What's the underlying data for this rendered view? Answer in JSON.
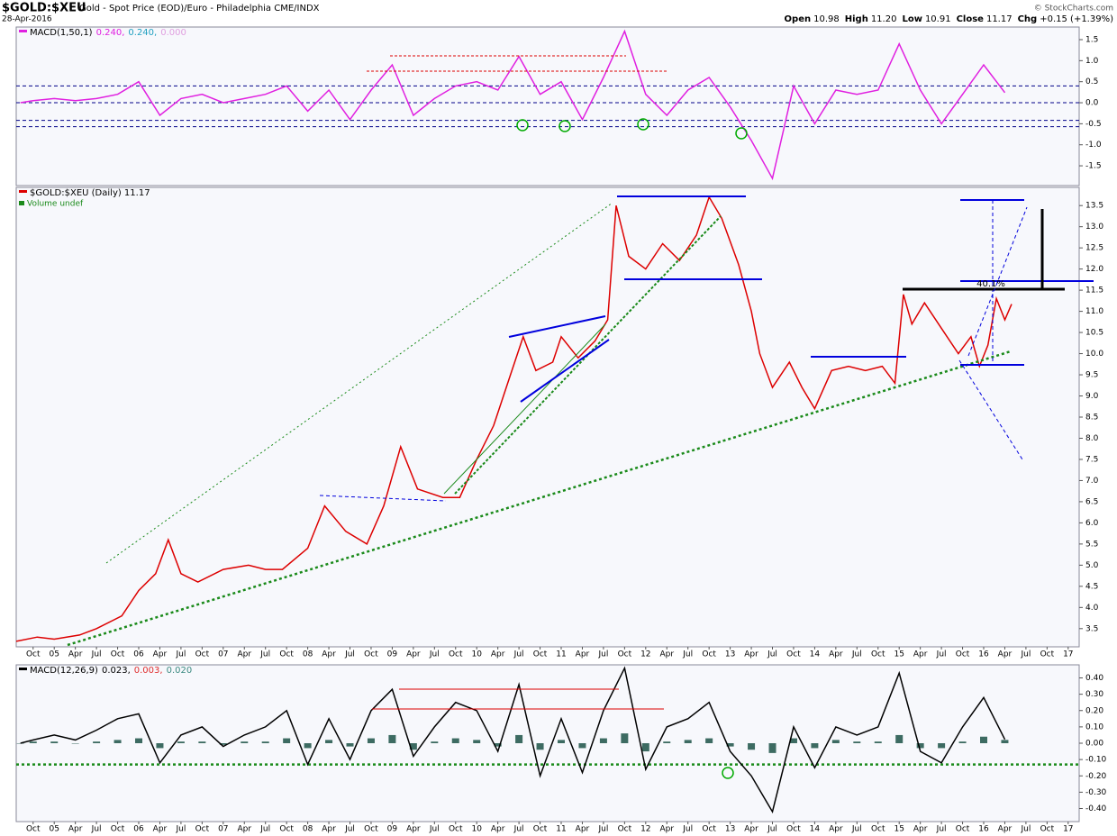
{
  "header": {
    "symbol": "$GOLD:$XEU",
    "description": "Gold - Spot Price (EOD)/Euro - Philadelphia  CME/INDX",
    "date": "28-Apr-2016",
    "copyright": "© StockCharts.com",
    "quote": [
      {
        "label": "Open",
        "value": "10.98"
      },
      {
        "label": "High",
        "value": "11.20"
      },
      {
        "label": "Low",
        "value": "10.91"
      },
      {
        "label": "Close",
        "value": "11.17"
      },
      {
        "label": "Chg",
        "value": "+0.15 (+1.39%)"
      }
    ]
  },
  "chart_data": [
    {
      "type": "line",
      "xlim": [
        2004.55,
        2017.13
      ],
      "ylim": [
        -1.97,
        1.8
      ],
      "yticks": [
        1.5,
        {
          "value": 1,
          "label": "1.0"
        },
        0.5,
        {
          "value": 0,
          "label": "0.0"
        },
        -0.5,
        {
          "value": -1,
          "label": "-1.0"
        },
        -1.5
      ],
      "reference_lines": [
        0.4,
        0,
        -0.42,
        -0.57
      ],
      "x": [
        2004.6,
        2004.75,
        2005,
        2005.25,
        2005.5,
        2005.75,
        2006,
        2006.25,
        2006.5,
        2006.75,
        2007,
        2007.25,
        2007.5,
        2007.75,
        2008,
        2008.25,
        2008.5,
        2008.75,
        2009,
        2009.25,
        2009.5,
        2009.75,
        2010,
        2010.25,
        2010.5,
        2010.75,
        2011,
        2011.25,
        2011.5,
        2011.75,
        2012,
        2012.25,
        2012.5,
        2012.75,
        2013,
        2013.25,
        2013.5,
        2013.75,
        2014,
        2014.25,
        2014.5,
        2014.75,
        2015,
        2015.25,
        2015.5,
        2015.75,
        2016,
        2016.25
      ],
      "series": [
        {
          "name": "MACD(1,50,1)",
          "type": "line",
          "color": "#e020e0",
          "values": [
            0,
            0.05,
            0.1,
            0.05,
            0.1,
            0.2,
            0.5,
            -0.3,
            0.1,
            0.2,
            0,
            0.1,
            0.2,
            0.4,
            -0.2,
            0.3,
            -0.4,
            0.3,
            0.9,
            -0.3,
            0.1,
            0.4,
            0.5,
            0.3,
            1.1,
            0.2,
            0.5,
            -0.4,
            0.6,
            1.7,
            0.2,
            -0.3,
            0.3,
            0.6,
            -0.1,
            -0.9,
            -1.8,
            0.4,
            -0.5,
            0.3,
            0.2,
            0.3,
            1.4,
            0.3,
            -0.5,
            0.2,
            0.9,
            0.24
          ]
        }
      ],
      "legend_values": [
        {
          "text": "0.240,",
          "color": "#e020e0"
        },
        {
          "text": "0.240,",
          "color": "#20a0c0"
        },
        {
          "text": "0.000",
          "color": "#e0a0e0"
        }
      ]
    },
    {
      "type": "line",
      "xlim": [
        2004.55,
        2017.13
      ],
      "ylim": [
        3.07,
        13.93
      ],
      "yticks": [
        3.5,
        {
          "value": 4,
          "label": "4.0"
        },
        4.5,
        {
          "value": 5,
          "label": "5.0"
        },
        5.5,
        {
          "value": 6,
          "label": "6.0"
        },
        6.5,
        {
          "value": 7,
          "label": "7.0"
        },
        7.5,
        {
          "value": 8,
          "label": "8.0"
        },
        8.5,
        {
          "value": 9,
          "label": "9.0"
        },
        9.5,
        {
          "value": 10,
          "label": "10.0"
        },
        10.5,
        {
          "value": 11,
          "label": "11.0"
        },
        11.5,
        {
          "value": 12,
          "label": "12.0"
        },
        12.5,
        {
          "value": 13,
          "label": "13.0"
        },
        13.5
      ],
      "xticks": [
        {
          "value": 2004.75,
          "label": "Oct"
        },
        {
          "value": 2005,
          "label": "05"
        },
        {
          "value": 2005.25,
          "label": "Apr"
        },
        {
          "value": 2005.5,
          "label": "Jul"
        },
        {
          "value": 2005.75,
          "label": "Oct"
        },
        {
          "value": 2006,
          "label": "06"
        },
        {
          "value": 2006.25,
          "label": "Apr"
        },
        {
          "value": 2006.5,
          "label": "Jul"
        },
        {
          "value": 2006.75,
          "label": "Oct"
        },
        {
          "value": 2007,
          "label": "07"
        },
        {
          "value": 2007.25,
          "label": "Apr"
        },
        {
          "value": 2007.5,
          "label": "Jul"
        },
        {
          "value": 2007.75,
          "label": "Oct"
        },
        {
          "value": 2008,
          "label": "08"
        },
        {
          "value": 2008.25,
          "label": "Apr"
        },
        {
          "value": 2008.5,
          "label": "Jul"
        },
        {
          "value": 2008.75,
          "label": "Oct"
        },
        {
          "value": 2009,
          "label": "09"
        },
        {
          "value": 2009.25,
          "label": "Apr"
        },
        {
          "value": 2009.5,
          "label": "Jul"
        },
        {
          "value": 2009.75,
          "label": "Oct"
        },
        {
          "value": 2010,
          "label": "10"
        },
        {
          "value": 2010.25,
          "label": "Apr"
        },
        {
          "value": 2010.5,
          "label": "Jul"
        },
        {
          "value": 2010.75,
          "label": "Oct"
        },
        {
          "value": 2011,
          "label": "11"
        },
        {
          "value": 2011.25,
          "label": "Apr"
        },
        {
          "value": 2011.5,
          "label": "Jul"
        },
        {
          "value": 2011.75,
          "label": "Oct"
        },
        {
          "value": 2012,
          "label": "12"
        },
        {
          "value": 2012.25,
          "label": "Apr"
        },
        {
          "value": 2012.5,
          "label": "Jul"
        },
        {
          "value": 2012.75,
          "label": "Oct"
        },
        {
          "value": 2013,
          "label": "13"
        },
        {
          "value": 2013.25,
          "label": "Apr"
        },
        {
          "value": 2013.5,
          "label": "Jul"
        },
        {
          "value": 2013.75,
          "label": "Oct"
        },
        {
          "value": 2014,
          "label": "14"
        },
        {
          "value": 2014.25,
          "label": "Apr"
        },
        {
          "value": 2014.5,
          "label": "Jul"
        },
        {
          "value": 2014.75,
          "label": "Oct"
        },
        {
          "value": 2015,
          "label": "15"
        },
        {
          "value": 2015.25,
          "label": "Apr"
        },
        {
          "value": 2015.5,
          "label": "Jul"
        },
        {
          "value": 2015.75,
          "label": "Oct"
        },
        {
          "value": 2016,
          "label": "16"
        },
        {
          "value": 2016.25,
          "label": "Apr"
        },
        {
          "value": 2016.5,
          "label": "Jul"
        },
        {
          "value": 2016.75,
          "label": "Oct"
        },
        {
          "value": 2017,
          "label": "17"
        }
      ],
      "x": [
        2004.55,
        2004.8,
        2005,
        2005.3,
        2005.5,
        2005.8,
        2006,
        2006.2,
        2006.35,
        2006.5,
        2006.7,
        2007,
        2007.3,
        2007.5,
        2007.7,
        2008,
        2008.2,
        2008.45,
        2008.7,
        2008.9,
        2009.1,
        2009.3,
        2009.6,
        2009.8,
        2010,
        2010.2,
        2010.4,
        2010.55,
        2010.7,
        2010.9,
        2011,
        2011.2,
        2011.4,
        2011.55,
        2011.65,
        2011.8,
        2012,
        2012.2,
        2012.4,
        2012.6,
        2012.75,
        2012.9,
        2013.1,
        2013.25,
        2013.35,
        2013.5,
        2013.7,
        2013.85,
        2014,
        2014.2,
        2014.4,
        2014.6,
        2014.8,
        2014.95,
        2015.05,
        2015.15,
        2015.3,
        2015.5,
        2015.7,
        2015.85,
        2015.95,
        2016.05,
        2016.15,
        2016.25,
        2016.33
      ],
      "series": [
        {
          "name": "$GOLD:$XEU (Daily) 11.17",
          "type": "line",
          "color": "#dd0000",
          "values": [
            3.2,
            3.3,
            3.25,
            3.35,
            3.5,
            3.8,
            4.4,
            4.8,
            5.6,
            4.8,
            4.6,
            4.9,
            5.0,
            4.9,
            4.9,
            5.4,
            6.4,
            5.8,
            5.5,
            6.4,
            7.8,
            6.8,
            6.6,
            6.6,
            7.5,
            8.3,
            9.5,
            10.4,
            9.6,
            9.8,
            10.4,
            9.9,
            10.3,
            10.8,
            13.5,
            12.3,
            12.0,
            12.6,
            12.2,
            12.8,
            13.7,
            13.2,
            12.1,
            11.0,
            10.0,
            9.2,
            9.8,
            9.2,
            8.7,
            9.6,
            9.7,
            9.6,
            9.7,
            9.3,
            11.4,
            10.7,
            11.2,
            10.6,
            10.0,
            10.4,
            9.7,
            10.2,
            11.3,
            10.8,
            11.17
          ]
        }
      ],
      "note": "Volume undef",
      "annotations": [
        "40.1%"
      ]
    },
    {
      "type": "line",
      "xlim": [
        2004.55,
        2017.13
      ],
      "ylim": [
        -0.48,
        0.48
      ],
      "yticks": [
        {
          "value": 0.4,
          "label": "0.40"
        },
        {
          "value": 0.3,
          "label": "0.30"
        },
        {
          "value": 0.2,
          "label": "0.20"
        },
        {
          "value": 0.1,
          "label": "0.10"
        },
        {
          "value": 0,
          "label": "0.00"
        },
        {
          "value": -0.1,
          "label": "-0.10"
        },
        {
          "value": -0.2,
          "label": "-0.20"
        },
        {
          "value": -0.3,
          "label": "-0.30"
        },
        {
          "value": -0.4,
          "label": "-0.40"
        }
      ],
      "reference_lines": [
        -0.13
      ],
      "xticks": [
        {
          "value": 2004.75,
          "label": "Oct"
        },
        {
          "value": 2005,
          "label": "05"
        },
        {
          "value": 2005.25,
          "label": "Apr"
        },
        {
          "value": 2005.5,
          "label": "Jul"
        },
        {
          "value": 2005.75,
          "label": "Oct"
        },
        {
          "value": 2006,
          "label": "06"
        },
        {
          "value": 2006.25,
          "label": "Apr"
        },
        {
          "value": 2006.5,
          "label": "Jul"
        },
        {
          "value": 2006.75,
          "label": "Oct"
        },
        {
          "value": 2007,
          "label": "07"
        },
        {
          "value": 2007.25,
          "label": "Apr"
        },
        {
          "value": 2007.5,
          "label": "Jul"
        },
        {
          "value": 2007.75,
          "label": "Oct"
        },
        {
          "value": 2008,
          "label": "08"
        },
        {
          "value": 2008.25,
          "label": "Apr"
        },
        {
          "value": 2008.5,
          "label": "Jul"
        },
        {
          "value": 2008.75,
          "label": "Oct"
        },
        {
          "value": 2009,
          "label": "09"
        },
        {
          "value": 2009.25,
          "label": "Apr"
        },
        {
          "value": 2009.5,
          "label": "Jul"
        },
        {
          "value": 2009.75,
          "label": "Oct"
        },
        {
          "value": 2010,
          "label": "10"
        },
        {
          "value": 2010.25,
          "label": "Apr"
        },
        {
          "value": 2010.5,
          "label": "Jul"
        },
        {
          "value": 2010.75,
          "label": "Oct"
        },
        {
          "value": 2011,
          "label": "11"
        },
        {
          "value": 2011.25,
          "label": "Apr"
        },
        {
          "value": 2011.5,
          "label": "Jul"
        },
        {
          "value": 2011.75,
          "label": "Oct"
        },
        {
          "value": 2012,
          "label": "12"
        },
        {
          "value": 2012.25,
          "label": "Apr"
        },
        {
          "value": 2012.5,
          "label": "Jul"
        },
        {
          "value": 2012.75,
          "label": "Oct"
        },
        {
          "value": 2013,
          "label": "13"
        },
        {
          "value": 2013.25,
          "label": "Apr"
        },
        {
          "value": 2013.5,
          "label": "Jul"
        },
        {
          "value": 2013.75,
          "label": "Oct"
        },
        {
          "value": 2014,
          "label": "14"
        },
        {
          "value": 2014.25,
          "label": "Apr"
        },
        {
          "value": 2014.5,
          "label": "Jul"
        },
        {
          "value": 2014.75,
          "label": "Oct"
        },
        {
          "value": 2015,
          "label": "15"
        },
        {
          "value": 2015.25,
          "label": "Apr"
        },
        {
          "value": 2015.5,
          "label": "Jul"
        },
        {
          "value": 2015.75,
          "label": "Oct"
        },
        {
          "value": 2016,
          "label": "16"
        },
        {
          "value": 2016.25,
          "label": "Apr"
        },
        {
          "value": 2016.5,
          "label": "Jul"
        },
        {
          "value": 2016.75,
          "label": "Oct"
        },
        {
          "value": 2017,
          "label": "17"
        }
      ],
      "x": [
        2004.6,
        2004.75,
        2005,
        2005.25,
        2005.5,
        2005.75,
        2006,
        2006.25,
        2006.5,
        2006.75,
        2007,
        2007.25,
        2007.5,
        2007.75,
        2008,
        2008.25,
        2008.5,
        2008.75,
        2009,
        2009.25,
        2009.5,
        2009.75,
        2010,
        2010.25,
        2010.5,
        2010.75,
        2011,
        2011.25,
        2011.5,
        2011.75,
        2012,
        2012.25,
        2012.5,
        2012.75,
        2013,
        2013.25,
        2013.5,
        2013.75,
        2014,
        2014.25,
        2014.5,
        2014.75,
        2015,
        2015.25,
        2015.5,
        2015.75,
        2016,
        2016.25
      ],
      "series": [
        {
          "type": "bar",
          "color": "#3d6b62",
          "values": [
            0,
            0.01,
            0.01,
            0,
            0.01,
            0.02,
            0.03,
            -0.03,
            0.01,
            0.01,
            -0.01,
            0.01,
            0.01,
            0.03,
            -0.03,
            0.02,
            -0.02,
            0.03,
            0.05,
            -0.04,
            0.01,
            0.03,
            0.02,
            -0.02,
            0.05,
            -0.04,
            0.02,
            -0.03,
            0.03,
            0.06,
            -0.05,
            0.01,
            0.02,
            0.03,
            -0.02,
            -0.04,
            -0.06,
            0.03,
            -0.03,
            0.02,
            0.01,
            0.01,
            0.05,
            -0.03,
            -0.03,
            0.01,
            0.04,
            0.02
          ]
        },
        {
          "name": "MACD(12,26,9)",
          "type": "line",
          "color": "#000000",
          "values": [
            0,
            0.02,
            0.05,
            0.02,
            0.08,
            0.15,
            0.18,
            -0.12,
            0.05,
            0.1,
            -0.02,
            0.05,
            0.1,
            0.2,
            -0.13,
            0.15,
            -0.1,
            0.2,
            0.33,
            -0.08,
            0.1,
            0.25,
            0.2,
            -0.05,
            0.36,
            -0.2,
            0.15,
            -0.18,
            0.2,
            0.46,
            -0.16,
            0.1,
            0.15,
            0.25,
            -0.05,
            -0.2,
            -0.42,
            0.1,
            -0.15,
            0.1,
            0.05,
            0.1,
            0.43,
            -0.05,
            -0.12,
            0.1,
            0.28,
            0.023
          ]
        }
      ],
      "legend_values": [
        {
          "text": "0.023,",
          "color": "#000000"
        },
        {
          "text": "0.003,",
          "color": "#e03030"
        },
        {
          "text": "0.020",
          "color": "#3d8b82"
        }
      ]
    }
  ]
}
